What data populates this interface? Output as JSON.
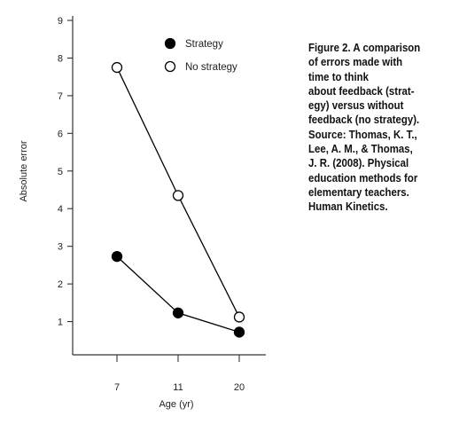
{
  "chart_data": {
    "type": "line",
    "categories": [
      "7",
      "11",
      "20"
    ],
    "series": [
      {
        "name": "Strategy",
        "values": [
          2.73,
          1.23,
          0.72
        ],
        "marker": "filled",
        "color": "#000000"
      },
      {
        "name": "No strategy",
        "values": [
          7.75,
          4.35,
          1.12
        ],
        "marker": "open",
        "color": "#000000"
      }
    ],
    "xlabel": "Age (yr)",
    "ylabel": "Absolute error",
    "ylim": [
      0,
      9
    ],
    "yticks": [
      1,
      2,
      3,
      4,
      5,
      6,
      7,
      8,
      9
    ],
    "grid": false,
    "legend_position": "top-right"
  },
  "caption": {
    "lines": [
      "Figure 2. A comparison",
      "of errors made with",
      "time to think",
      "about feedback (strat-",
      "egy) versus without",
      "feedback (no strategy).",
      "Source: Thomas, K. T.,",
      "Lee, A. M., & Thomas,",
      "J. R. (2008). Physical",
      "education methods for",
      "elementary teachers.",
      "Human Kinetics."
    ]
  }
}
